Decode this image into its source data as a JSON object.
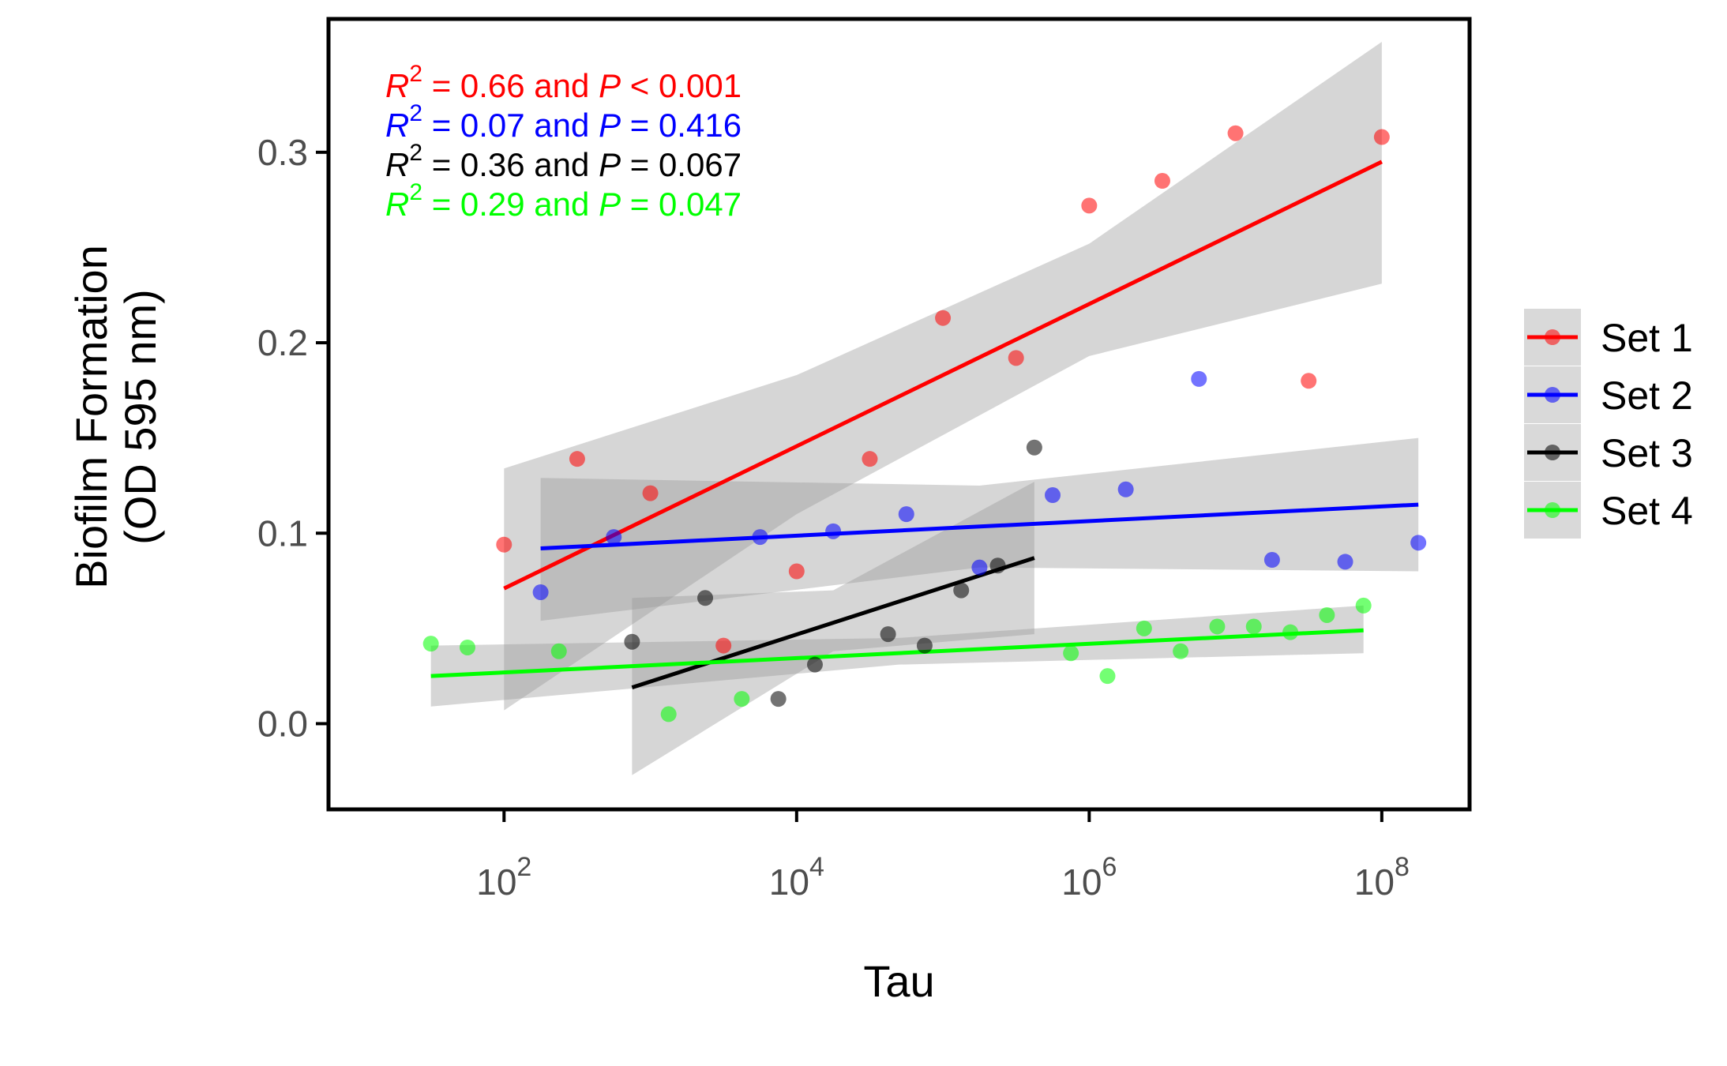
{
  "chart_data": {
    "type": "scatter",
    "xlabel": "Tau",
    "ylabel": [
      "Biofilm Formation",
      "(OD 595 nm)"
    ],
    "xscale": "log10",
    "xlim_log10": [
      0.8,
      8.6
    ],
    "ylim": [
      -0.045,
      0.37
    ],
    "x_ticks": [
      {
        "log10": 2,
        "base": "10",
        "exp": "2"
      },
      {
        "log10": 4,
        "base": "10",
        "exp": "4"
      },
      {
        "log10": 6,
        "base": "10",
        "exp": "6"
      },
      {
        "log10": 8,
        "base": "10",
        "exp": "8"
      }
    ],
    "y_ticks": [
      {
        "value": 0.0,
        "label": "0.0"
      },
      {
        "value": 0.1,
        "label": "0.1"
      },
      {
        "value": 0.2,
        "label": "0.2"
      },
      {
        "value": 0.3,
        "label": "0.3"
      }
    ],
    "grid": false,
    "legend_position": "right",
    "series": [
      {
        "name": "Set 1",
        "color": "#ff0000",
        "points": [
          [
            2.0,
            0.094
          ],
          [
            2.5,
            0.139
          ],
          [
            3.0,
            0.121
          ],
          [
            3.5,
            0.041
          ],
          [
            4.0,
            0.08
          ],
          [
            4.5,
            0.139
          ],
          [
            5.0,
            0.213
          ],
          [
            5.5,
            0.192
          ],
          [
            6.0,
            0.272
          ],
          [
            6.5,
            0.285
          ],
          [
            7.0,
            0.31
          ],
          [
            7.5,
            0.18
          ],
          [
            8.0,
            0.308
          ]
        ],
        "fit": {
          "x0": 2.0,
          "x1": 8.0,
          "y0": 0.071,
          "y1": 0.295
        },
        "band": [
          [
            2.0,
            0.007,
            0.134
          ],
          [
            4.0,
            0.11,
            0.183
          ],
          [
            6.0,
            0.193,
            0.252
          ],
          [
            8.0,
            0.231,
            0.358
          ]
        ]
      },
      {
        "name": "Set 2",
        "color": "#0000ff",
        "points": [
          [
            2.25,
            0.069
          ],
          [
            2.75,
            0.098
          ],
          [
            3.75,
            0.098
          ],
          [
            4.25,
            0.101
          ],
          [
            4.75,
            0.11
          ],
          [
            5.25,
            0.082
          ],
          [
            5.75,
            0.12
          ],
          [
            6.25,
            0.123
          ],
          [
            6.75,
            0.181
          ],
          [
            7.25,
            0.086
          ],
          [
            7.75,
            0.085
          ],
          [
            8.25,
            0.095
          ]
        ],
        "fit": {
          "x0": 2.25,
          "x1": 8.25,
          "y0": 0.092,
          "y1": 0.115
        },
        "band": [
          [
            2.25,
            0.054,
            0.129
          ],
          [
            5.25,
            0.082,
            0.125
          ],
          [
            8.25,
            0.08,
            0.15
          ]
        ]
      },
      {
        "name": "Set 3",
        "color": "#000000",
        "points": [
          [
            2.875,
            0.043
          ],
          [
            3.375,
            0.066
          ],
          [
            3.875,
            0.013
          ],
          [
            4.125,
            0.031
          ],
          [
            4.625,
            0.047
          ],
          [
            4.875,
            0.041
          ],
          [
            5.125,
            0.07
          ],
          [
            5.375,
            0.083
          ],
          [
            5.625,
            0.145
          ]
        ],
        "fit": {
          "x0": 2.875,
          "x1": 5.625,
          "y0": 0.019,
          "y1": 0.087
        },
        "band": [
          [
            2.875,
            -0.027,
            0.066
          ],
          [
            4.25,
            0.038,
            0.07
          ],
          [
            5.625,
            0.047,
            0.127
          ]
        ]
      },
      {
        "name": "Set 4",
        "color": "#00ff00",
        "points": [
          [
            1.5,
            0.042
          ],
          [
            1.75,
            0.04
          ],
          [
            2.375,
            0.038
          ],
          [
            3.125,
            0.005
          ],
          [
            3.625,
            0.013
          ],
          [
            5.875,
            0.037
          ],
          [
            6.125,
            0.025
          ],
          [
            6.375,
            0.05
          ],
          [
            6.625,
            0.038
          ],
          [
            6.875,
            0.051
          ],
          [
            7.125,
            0.051
          ],
          [
            7.375,
            0.048
          ],
          [
            7.625,
            0.057
          ],
          [
            7.875,
            0.062
          ]
        ],
        "fit": {
          "x0": 1.5,
          "x1": 7.875,
          "y0": 0.025,
          "y1": 0.049
        },
        "band": [
          [
            1.5,
            0.009,
            0.041
          ],
          [
            4.7,
            0.031,
            0.045
          ],
          [
            7.875,
            0.037,
            0.062
          ]
        ]
      }
    ],
    "annotations": [
      {
        "color": "#ff0000",
        "r2": "0.66",
        "and": "and",
        "p_rel": "<",
        "p": "0.001"
      },
      {
        "color": "#0000ff",
        "r2": "0.07",
        "and": "and",
        "p_rel": "=",
        "p": "0.416"
      },
      {
        "color": "#000000",
        "r2": "0.36",
        "and": "and",
        "p_rel": "=",
        "p": "0.067"
      },
      {
        "color": "#00ff00",
        "r2": "0.29",
        "and": "and",
        "p_rel": "=",
        "p": "0.047"
      }
    ],
    "colors": {
      "band": "#999999",
      "axis": "#000000",
      "tick_label": "#4d4d4d",
      "legend_key_bg": "#d9d9d9"
    }
  }
}
